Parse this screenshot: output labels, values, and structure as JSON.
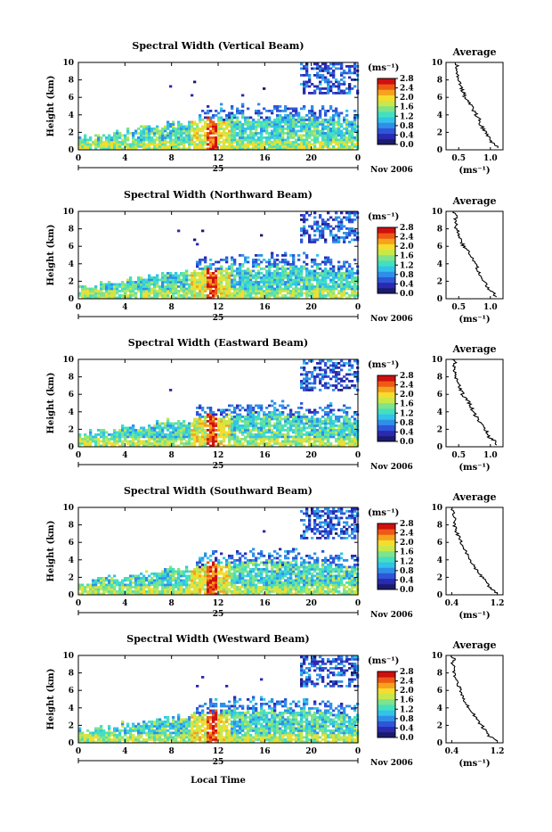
{
  "x_axis_label": "Local Time",
  "date_label": "Nov 2006",
  "day_label": "25",
  "x_ticks": [
    "0",
    "4",
    "8",
    "12",
    "16",
    "20",
    "0"
  ],
  "y_ticks": [
    "0",
    "2",
    "4",
    "6",
    "8",
    "10"
  ],
  "ylabel": "Height (km)",
  "unit_label": "(ms⁻¹)",
  "colorbar_ticks": [
    "0.0",
    "0.4",
    "0.8",
    "1.2",
    "1.6",
    "2.0",
    "2.4",
    "2.8"
  ],
  "avg_title": "Average",
  "avg_xlabel": "(ms⁻¹)",
  "colors": {
    "colormap": [
      "#1b1b6e",
      "#2a2ab0",
      "#2f55d8",
      "#2f8fe8",
      "#33c3e8",
      "#43e0c0",
      "#7fe38a",
      "#c8e84a",
      "#f6dc2e",
      "#f6a21c",
      "#ee5a14",
      "#d01010"
    ]
  },
  "chart_data": [
    {
      "type": "heatmap",
      "title": "Spectral Width (Vertical Beam)",
      "xlabel": "",
      "ylabel": "Height (km)",
      "xlim": [
        0,
        24
      ],
      "ylim": [
        0,
        10
      ],
      "clim": [
        0.0,
        2.8
      ],
      "avg_profile": {
        "xticks": [
          "0.5",
          "1.0"
        ],
        "xlim": [
          0.3,
          1.2
        ],
        "x": [
          1.12,
          1.08,
          1.0,
          0.97,
          0.93,
          0.88,
          0.84,
          0.82,
          0.78,
          0.74,
          0.7,
          0.66,
          0.6,
          0.58,
          0.55,
          0.52,
          0.48,
          0.5,
          0.45,
          0.48,
          0.44
        ],
        "y": [
          0.2,
          0.6,
          1.0,
          1.5,
          2.0,
          2.5,
          3.0,
          3.5,
          4.0,
          4.5,
          5.0,
          5.5,
          6.0,
          6.5,
          7.0,
          7.5,
          8.0,
          8.5,
          9.0,
          9.5,
          10.0
        ]
      }
    },
    {
      "type": "heatmap",
      "title": "Spectral Width (Northward Beam)",
      "xlabel": "",
      "ylabel": "Height (km)",
      "xlim": [
        0,
        24
      ],
      "ylim": [
        0,
        10
      ],
      "clim": [
        0.0,
        2.8
      ],
      "avg_profile": {
        "xticks": [
          "0.5",
          "1.0"
        ],
        "xlim": [
          0.3,
          1.2
        ],
        "x": [
          1.1,
          1.05,
          0.98,
          0.95,
          0.9,
          0.86,
          0.82,
          0.8,
          0.75,
          0.72,
          0.68,
          0.63,
          0.58,
          0.55,
          0.53,
          0.5,
          0.46,
          0.48,
          0.44,
          0.47,
          0.42
        ],
        "y": [
          0.2,
          0.6,
          1.0,
          1.5,
          2.0,
          2.5,
          3.0,
          3.5,
          4.0,
          4.5,
          5.0,
          5.5,
          6.0,
          6.5,
          7.0,
          7.5,
          8.0,
          8.5,
          9.0,
          9.5,
          10.0
        ]
      }
    },
    {
      "type": "heatmap",
      "title": "Spectral Width (Eastward Beam)",
      "xlabel": "",
      "ylabel": "Height (km)",
      "xlim": [
        0,
        24
      ],
      "ylim": [
        0,
        10
      ],
      "clim": [
        0.0,
        2.8
      ],
      "avg_profile": {
        "xticks": [
          "0.5",
          "1.0"
        ],
        "xlim": [
          0.3,
          1.2
        ],
        "x": [
          1.1,
          1.08,
          0.99,
          0.96,
          0.92,
          0.86,
          0.8,
          0.78,
          0.72,
          0.7,
          0.66,
          0.62,
          0.56,
          0.54,
          0.5,
          0.48,
          0.44,
          0.46,
          0.42,
          0.45,
          0.4
        ],
        "y": [
          0.2,
          0.6,
          1.0,
          1.5,
          2.0,
          2.5,
          3.0,
          3.5,
          4.0,
          4.5,
          5.0,
          5.5,
          6.0,
          6.5,
          7.0,
          7.5,
          8.0,
          8.5,
          9.0,
          9.5,
          10.0
        ]
      }
    },
    {
      "type": "heatmap",
      "title": "Spectral Width (Southward Beam)",
      "xlabel": "",
      "ylabel": "Height (km)",
      "xlim": [
        0,
        24
      ],
      "ylim": [
        0,
        10
      ],
      "clim": [
        0.0,
        2.8
      ],
      "avg_profile": {
        "xticks": [
          "0.4",
          "1.2"
        ],
        "xlim": [
          0.3,
          1.3
        ],
        "x": [
          1.2,
          1.12,
          1.05,
          1.0,
          0.93,
          0.88,
          0.82,
          0.78,
          0.72,
          0.68,
          0.64,
          0.6,
          0.56,
          0.53,
          0.5,
          0.47,
          0.44,
          0.46,
          0.42,
          0.44,
          0.4
        ],
        "y": [
          0.2,
          0.6,
          1.0,
          1.5,
          2.0,
          2.5,
          3.0,
          3.5,
          4.0,
          4.5,
          5.0,
          5.5,
          6.0,
          6.5,
          7.0,
          7.5,
          8.0,
          8.5,
          9.0,
          9.5,
          10.0
        ]
      }
    },
    {
      "type": "heatmap",
      "title": "Spectral Width (Westward Beam)",
      "xlabel": "",
      "ylabel": "Height (km)",
      "xlim": [
        0,
        24
      ],
      "ylim": [
        0,
        10
      ],
      "clim": [
        0.0,
        2.8
      ],
      "avg_profile": {
        "xticks": [
          "0.4",
          "1.2"
        ],
        "xlim": [
          0.3,
          1.3
        ],
        "x": [
          1.18,
          1.1,
          1.02,
          0.98,
          0.92,
          0.86,
          0.8,
          0.76,
          0.7,
          0.66,
          0.62,
          0.58,
          0.55,
          0.52,
          0.49,
          0.46,
          0.43,
          0.45,
          0.41,
          0.44,
          0.4
        ],
        "y": [
          0.2,
          0.6,
          1.0,
          1.5,
          2.0,
          2.5,
          3.0,
          3.5,
          4.0,
          4.5,
          5.0,
          5.5,
          6.0,
          6.5,
          7.0,
          7.5,
          8.0,
          8.5,
          9.0,
          9.5,
          10.0
        ]
      }
    }
  ]
}
